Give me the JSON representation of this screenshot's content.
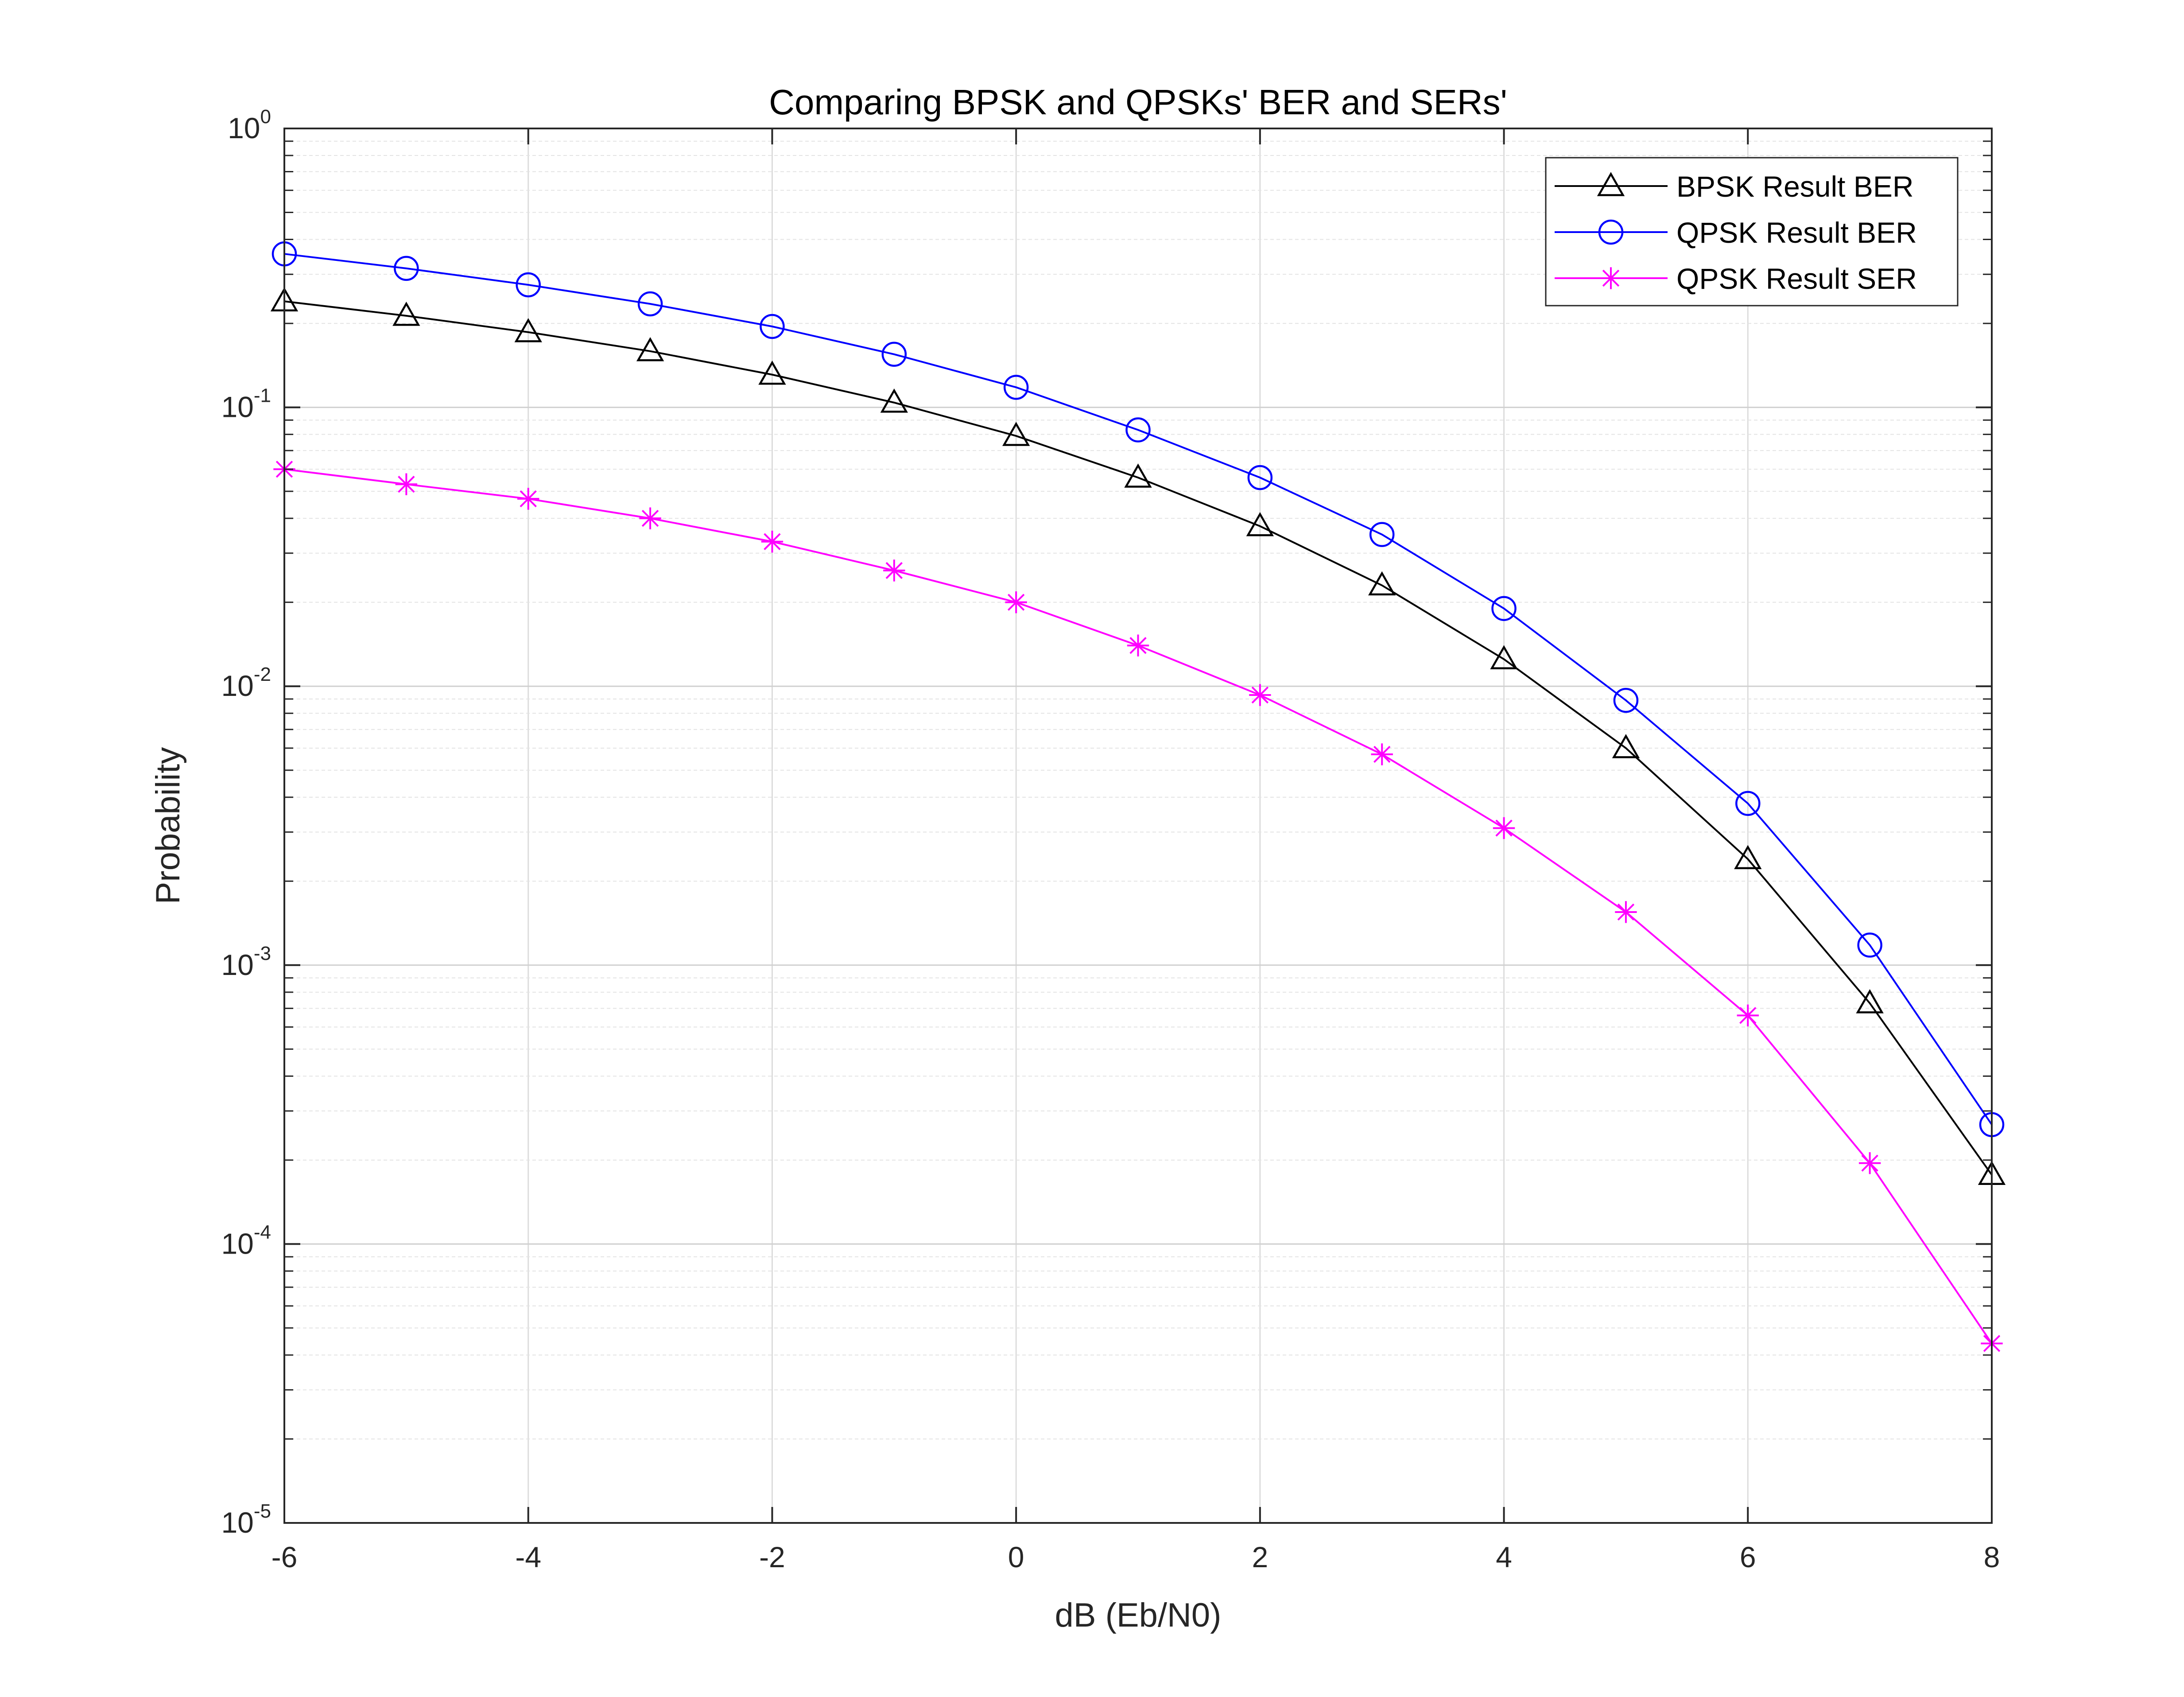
{
  "chart_data": {
    "type": "line",
    "title": "Comparing BPSK and QPSKs' BER and SERs'",
    "xlabel": "dB   (Eb/N0)",
    "ylabel": "Probability",
    "xlim": [
      -6,
      8
    ],
    "ylim": [
      1e-05,
      1
    ],
    "yscale": "log",
    "grid": true,
    "legend_position": "top-right",
    "x_ticks": [
      "-6",
      "-4",
      "-2",
      "0",
      "2",
      "4",
      "6",
      "8"
    ],
    "y_ticks": [
      {
        "base": "10",
        "exp": "-5"
      },
      {
        "base": "10",
        "exp": "-4"
      },
      {
        "base": "10",
        "exp": "-3"
      },
      {
        "base": "10",
        "exp": "-2"
      },
      {
        "base": "10",
        "exp": "-1"
      },
      {
        "base": "10",
        "exp": "0"
      }
    ],
    "x": [
      -6,
      -5,
      -4,
      -3,
      -2,
      -1,
      0,
      1,
      2,
      3,
      4,
      5,
      6,
      7,
      8
    ],
    "series": [
      {
        "name": "BPSK Result BER",
        "color": "#000000",
        "marker": "triangle",
        "values": [
          0.24,
          0.213,
          0.186,
          0.159,
          0.131,
          0.104,
          0.079,
          0.056,
          0.0375,
          0.023,
          0.0125,
          0.006,
          0.0024,
          0.00073,
          0.000177
        ]
      },
      {
        "name": "QPSK Result BER",
        "color": "#0000ff",
        "marker": "circle",
        "values": [
          0.355,
          0.315,
          0.275,
          0.235,
          0.195,
          0.155,
          0.118,
          0.083,
          0.056,
          0.035,
          0.019,
          0.0089,
          0.0038,
          0.00118,
          0.000268
        ]
      },
      {
        "name": "QPSK Result SER",
        "color": "#ff00ff",
        "marker": "asterisk",
        "values": [
          0.06,
          0.053,
          0.047,
          0.04,
          0.033,
          0.026,
          0.02,
          0.014,
          0.0093,
          0.0057,
          0.0031,
          0.00155,
          0.00066,
          0.000195,
          4.4e-05
        ]
      }
    ]
  }
}
